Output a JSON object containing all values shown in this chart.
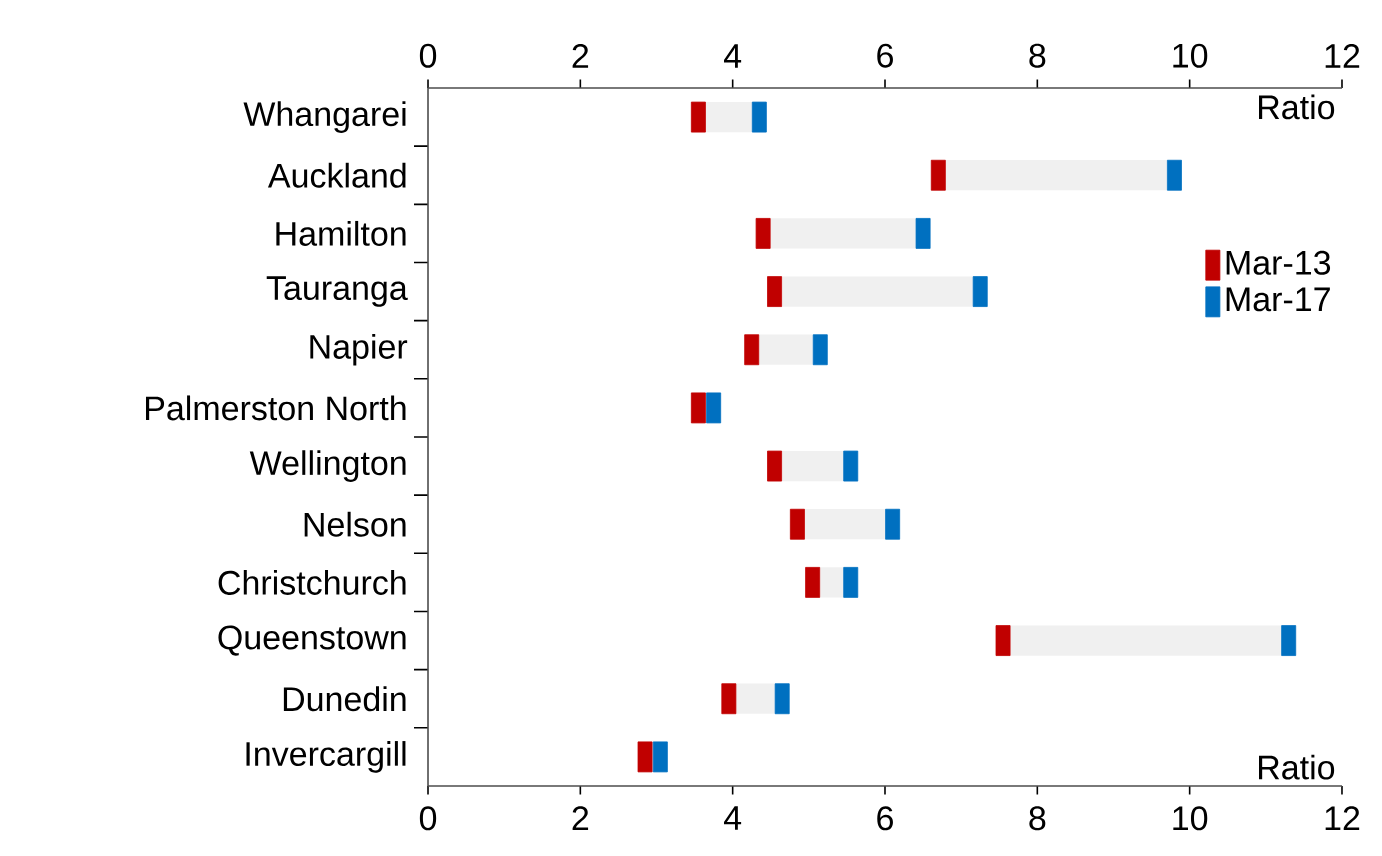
{
  "chart_data": {
    "type": "scatter",
    "orientation": "horizontal",
    "categories": [
      "Whangarei",
      "Auckland",
      "Hamilton",
      "Tauranga",
      "Napier",
      "Palmerston North",
      "Wellington",
      "Nelson",
      "Christchurch",
      "Queenstown",
      "Dunedin",
      "Invercargill"
    ],
    "series": [
      {
        "type": "bar",
        "color": "#f0f0f0",
        "base": [
          3.65,
          6.8,
          4.5,
          4.65,
          4.35,
          null,
          4.65,
          4.95,
          5.15,
          7.65,
          4.05,
          null
        ],
        "values": [
          0.6,
          2.9,
          1.9,
          2.5,
          0.7,
          null,
          0.8,
          1.05,
          0.3,
          3.55,
          0.5,
          null
        ]
      },
      {
        "name": "Mar-13",
        "color": "#c00000",
        "values": [
          3.55,
          6.7,
          4.4,
          4.55,
          4.25,
          3.55,
          4.55,
          4.85,
          5.05,
          7.55,
          3.95,
          2.85
        ]
      },
      {
        "name": "Mar-17",
        "color": "#0070c0",
        "values": [
          4.35,
          9.8,
          6.5,
          7.25,
          5.15,
          3.75,
          5.55,
          6.1,
          5.55,
          11.3,
          4.65,
          3.05
        ]
      }
    ],
    "xlim": [
      0,
      12
    ],
    "xticks": [
      0,
      2,
      4,
      6,
      8,
      10,
      12
    ],
    "xlabel": "Ratio",
    "x2lim": [
      0,
      12
    ],
    "x2ticks": [
      0,
      2,
      4,
      6,
      8,
      10,
      12
    ],
    "x2label": "Ratio",
    "marker": "square",
    "legend": "right",
    "grid": false
  }
}
